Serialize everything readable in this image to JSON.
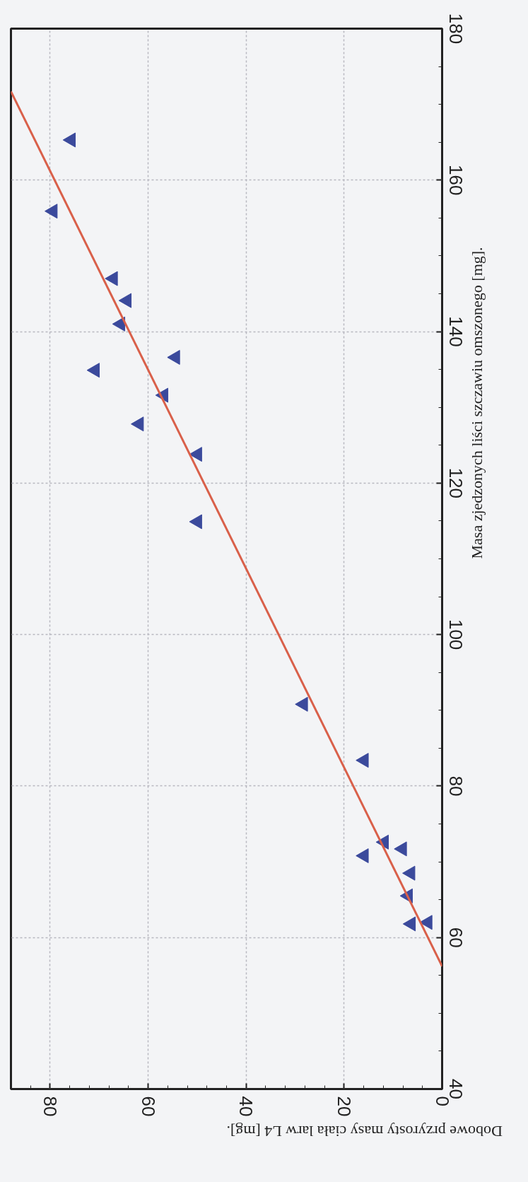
{
  "chart_data": {
    "type": "scatter",
    "xlabel": "Dobowe przyrosty masy ciała larw L4 [mg].",
    "ylabel": "Masa zjedzonych liści szczawiu omszonego [mg].",
    "xlim": [
      88,
      0
    ],
    "ylim": [
      40,
      180
    ],
    "xticks": [
      80,
      60,
      40,
      20,
      0
    ],
    "yticks": [
      40,
      60,
      80,
      100,
      120,
      140,
      160,
      180
    ],
    "grid": true,
    "series": [
      {
        "type": "scatter",
        "marker": "triangle",
        "color": "#3b4a9c",
        "x": [
          75.7,
          79.4,
          67.1,
          64.3,
          65.6,
          54.4,
          70.8,
          56.8,
          61.8,
          49.9,
          49.9,
          28.3,
          15.9,
          11.8,
          8.1,
          15.9,
          6.4,
          6.9,
          6.3,
          2.9
        ],
        "values": [
          165.3,
          155.9,
          147.0,
          144.1,
          141.0,
          136.6,
          134.9,
          131.6,
          127.8,
          123.8,
          114.9,
          90.8,
          83.4,
          72.6,
          71.7,
          70.8,
          68.5,
          65.5,
          61.8,
          62.0
        ]
      },
      {
        "type": "line",
        "color": "#d9604a",
        "x": [
          0,
          88
        ],
        "values": [
          56.2,
          171.7
        ]
      }
    ]
  }
}
